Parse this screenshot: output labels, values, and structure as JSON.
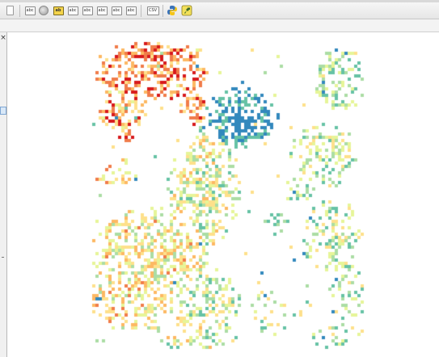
{
  "toolbar": {
    "buttons": [
      {
        "name": "new-layer-button",
        "icon": "page-icon",
        "label": ""
      },
      {
        "name": "add-text-button",
        "icon": "text-icon",
        "label": "abc"
      },
      {
        "name": "label-pin-button",
        "icon": "globe-icon",
        "label": ""
      },
      {
        "name": "label-highlight-button",
        "icon": "label-icon",
        "label": "ab"
      },
      {
        "name": "label-move-button",
        "icon": "label-move-icon",
        "label": "abc"
      },
      {
        "name": "label-rotate-button",
        "icon": "label-rotate-icon",
        "label": "abc"
      },
      {
        "name": "label-change-button",
        "icon": "label-change-icon",
        "label": "abc"
      },
      {
        "name": "label-show-button",
        "icon": "label-show-icon",
        "label": "abc"
      },
      {
        "name": "label-props-button",
        "icon": "label-props-icon",
        "label": "abc"
      },
      {
        "name": "csv-button",
        "icon": "csv-icon",
        "label": "CSV"
      },
      {
        "name": "python-console-button",
        "icon": "python-icon",
        "label": ""
      },
      {
        "name": "plugin-button",
        "icon": "plugin-icon",
        "label": ""
      }
    ]
  },
  "map": {
    "legend_colors": [
      "#d7191c",
      "#f07c4a",
      "#fdb863",
      "#fee08b",
      "#e6f598",
      "#abdda4",
      "#66c2a5",
      "#3288bd"
    ],
    "background": "#ffffff"
  }
}
